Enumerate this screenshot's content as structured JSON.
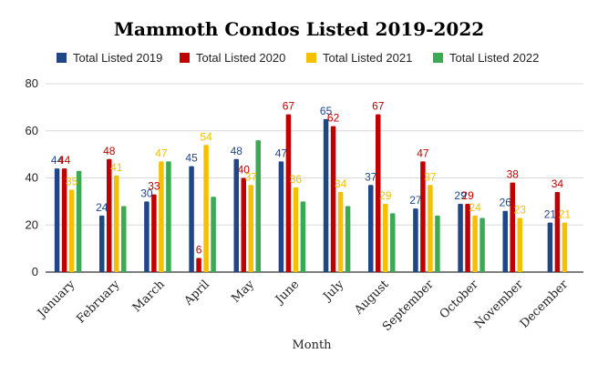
{
  "chart_data": {
    "type": "bar",
    "title": "Mammoth Condos Listed 2019-2022",
    "xlabel": "Month",
    "ylabel": "",
    "ylim": [
      0,
      80
    ],
    "yticks": [
      0,
      20,
      40,
      60,
      80
    ],
    "grid": true,
    "legend_position": "top",
    "categories": [
      "January",
      "February",
      "March",
      "April",
      "May",
      "June",
      "July",
      "August",
      "September",
      "October",
      "November",
      "December"
    ],
    "series": [
      {
        "name": "Total Listed 2019",
        "color": "#1f4788",
        "values": [
          44,
          24,
          30,
          45,
          48,
          47,
          65,
          37,
          27,
          29,
          26,
          21
        ]
      },
      {
        "name": "Total Listed 2020",
        "color": "#c00000",
        "values": [
          44,
          48,
          33,
          6,
          40,
          67,
          62,
          67,
          47,
          29,
          38,
          34
        ]
      },
      {
        "name": "Total Listed 2021",
        "color": "#f5c000",
        "values": [
          35,
          41,
          47,
          54,
          37,
          36,
          34,
          29,
          37,
          24,
          23,
          21
        ]
      },
      {
        "name": "Total Listed 2022",
        "color": "#3aaa55",
        "values": [
          43,
          28,
          47,
          32,
          56,
          30,
          28,
          25,
          24,
          23,
          null,
          null
        ]
      }
    ]
  }
}
